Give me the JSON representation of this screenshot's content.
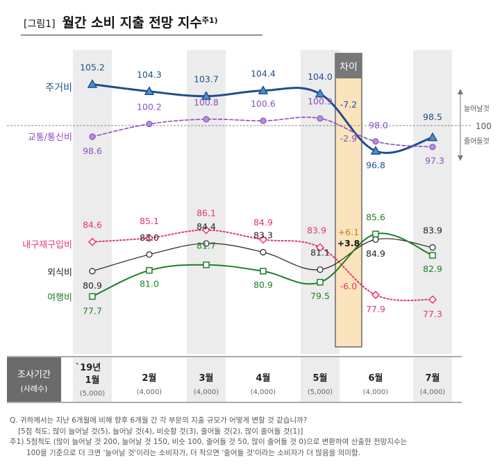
{
  "header": {
    "figure_label": "[그림1]",
    "title": "월간 소비 지출 전망 지수",
    "title_sup": "주1)"
  },
  "chart_data": {
    "type": "line",
    "title": "월간 소비 지출 전망 지수",
    "reference_value": 100,
    "reference_label": "100",
    "categories": [
      {
        "period": "`19년",
        "month": "1월",
        "sample": "(5,000)"
      },
      {
        "period": "",
        "month": "2월",
        "sample": "(4,000)"
      },
      {
        "period": "",
        "month": "3월",
        "sample": "(4,000)"
      },
      {
        "period": "",
        "month": "4월",
        "sample": "(4,000)"
      },
      {
        "period": "",
        "month": "5월",
        "sample": "(5,000)"
      },
      {
        "period": "",
        "month": "6월",
        "sample": "(4,000)"
      },
      {
        "period": "",
        "month": "7월",
        "sample": "(4,000)"
      }
    ],
    "series": [
      {
        "name": "주거비",
        "color": "#1f4e8c",
        "label_color": "#1f4e8c",
        "marker": "triangle",
        "values": [
          105.2,
          104.3,
          103.7,
          104.4,
          104.0,
          96.8,
          98.5
        ],
        "labels": [
          "105.2",
          "104.3",
          "103.7",
          "104.4",
          "104.0",
          "96.8",
          "98.5"
        ]
      },
      {
        "name": "교통/통신비",
        "color": "#8a4fbf",
        "label_color": "#8a4fbf",
        "marker": "circle",
        "values": [
          98.6,
          100.2,
          100.8,
          100.6,
          100.9,
          98.0,
          97.3
        ],
        "labels": [
          "98.6",
          "100.2",
          "100.8",
          "100.6",
          "100.9",
          "98.0",
          "97.3"
        ]
      },
      {
        "name": "내구재구입비",
        "color": "#e8336f",
        "label_color": "#e8336f",
        "marker": "diamond",
        "values": [
          84.6,
          85.1,
          86.1,
          84.9,
          83.9,
          77.9,
          77.3
        ],
        "labels": [
          "84.6",
          "85.1",
          "86.1",
          "84.9",
          "83.9",
          "77.9",
          "77.3"
        ]
      },
      {
        "name": "외식비",
        "color": "#222222",
        "label_color": "#222222",
        "marker": "circle",
        "values": [
          80.9,
          83.0,
          84.4,
          83.3,
          81.1,
          84.9,
          83.9
        ],
        "labels": [
          "80.9",
          "83.0",
          "84.4",
          "83.3",
          "81.1",
          "84.9",
          "83.9"
        ]
      },
      {
        "name": "여행비",
        "color": "#1e7d22",
        "label_color": "#1e7d22",
        "marker": "square",
        "values": [
          77.7,
          81.0,
          81.7,
          80.9,
          79.5,
          85.6,
          82.9
        ],
        "labels": [
          "77.7",
          "81.0",
          "81.7",
          "80.9",
          "79.5",
          "85.6",
          "82.9"
        ]
      }
    ],
    "difference_box": {
      "title": "차이",
      "items": [
        {
          "text": "-7.2",
          "color": "#1f4e8c",
          "series": "주거비"
        },
        {
          "text": "-2.9",
          "color": "#8a4fbf",
          "series": "교통/통신비"
        },
        {
          "text": "+6.1",
          "color": "#b8860b",
          "series": "여행비"
        },
        {
          "text": "+3.8",
          "color": "#111111",
          "series": "외식비"
        },
        {
          "text": "-6.0",
          "color": "#e8336f",
          "series": "내구재구입비"
        }
      ]
    },
    "side_scale": {
      "up_label": "늘어날것",
      "down_label": "줄어들것"
    },
    "table_header": {
      "label": "조사기간",
      "sublabel": "(사례수)"
    },
    "grid": false,
    "legend_placement": "left (series names next to lines)"
  },
  "notes": {
    "question": "Q. 귀하께서는 지난 6개월에 비해 향후 6개월 간 각 부문의 지출 규모가 어떻게 변할 것 같습니까?",
    "scale": "[5점 척도; 많이 늘어날 것(5), 늘어날 것(4), 비슷할 것(3), 줄어들 것(2), 많이 줄어들 것(1)]",
    "footnote1": "주1) 5점척도 (많이 늘어날 것 200, 늘어날 것 150, 비슷 100, 줄어들 것 50, 많이 줄어들 것 0)으로 변환하여 산출한 전망지수는",
    "footnote2": "100을 기준으로 더 크면 '늘어날 것'이라는 소비자가, 더 작으면 '줄어들 것'이라는 소비자가 더 많음을 의미함."
  }
}
